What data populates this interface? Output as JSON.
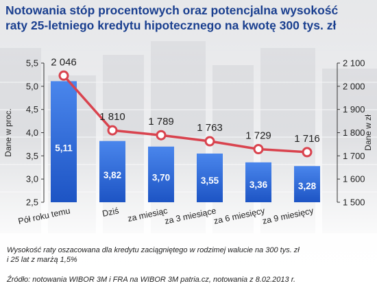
{
  "chart_data": {
    "type": "bar+line",
    "title_lines": [
      "Notowania stóp procentowych oraz potencjalna wysokość",
      "raty 25-letniego kredytu hipotecznego na kwotę 300 tys. zł"
    ],
    "categories": [
      "Pół roku temu",
      "Dziś",
      "za miesiąc",
      "za 3 miesiące",
      "za 6 miesięcy",
      "za 9 miesięcy"
    ],
    "bars": {
      "axis": "left",
      "values": [
        5.11,
        3.82,
        3.7,
        3.55,
        3.36,
        3.28
      ],
      "labels": [
        "5,11",
        "3,82",
        "3,70",
        "3,55",
        "3,36",
        "3,28"
      ],
      "color": "#2c6ad6"
    },
    "line": {
      "axis": "right",
      "values": [
        2046,
        1810,
        1789,
        1763,
        1729,
        1716
      ],
      "labels": [
        "2 046",
        "1 810",
        "1 789",
        "1 763",
        "1 729",
        "1 716"
      ],
      "color": "#d9434e"
    },
    "y_left": {
      "label": "Dane w proc.",
      "min": 2.5,
      "max": 5.5,
      "ticks": [
        2.5,
        3.0,
        3.5,
        4.0,
        4.5,
        5.0,
        5.5
      ],
      "tick_labels": [
        "2,5",
        "3,0",
        "3,5",
        "4,0",
        "4,5",
        "5,0",
        "5,5"
      ]
    },
    "y_right": {
      "label": "Dane w zł",
      "min": 1500,
      "max": 2100,
      "ticks": [
        1500,
        1600,
        1700,
        1800,
        1900,
        2000,
        2100
      ],
      "tick_labels": [
        "1 500",
        "1 600",
        "1 700",
        "1 800",
        "1 900",
        "2 000",
        "2 100"
      ]
    },
    "grid": false
  },
  "footnotes": {
    "note_lines": [
      "Wysokość raty oszacowana dla kredytu zaciągniętego w rodzimej walucie na 300 tys. zł",
      "i 25 lat z marżą 1,5%"
    ],
    "source": "Źródło: notowania WIBOR 3M i FRA na WIBOR 3M patria.cz, notowania z 8.02.2013 r."
  },
  "colors": {
    "title": "#1a3f8f",
    "bar_top": "#4a86ec",
    "bar_bottom": "#1d54c4",
    "line": "#d9434e"
  }
}
